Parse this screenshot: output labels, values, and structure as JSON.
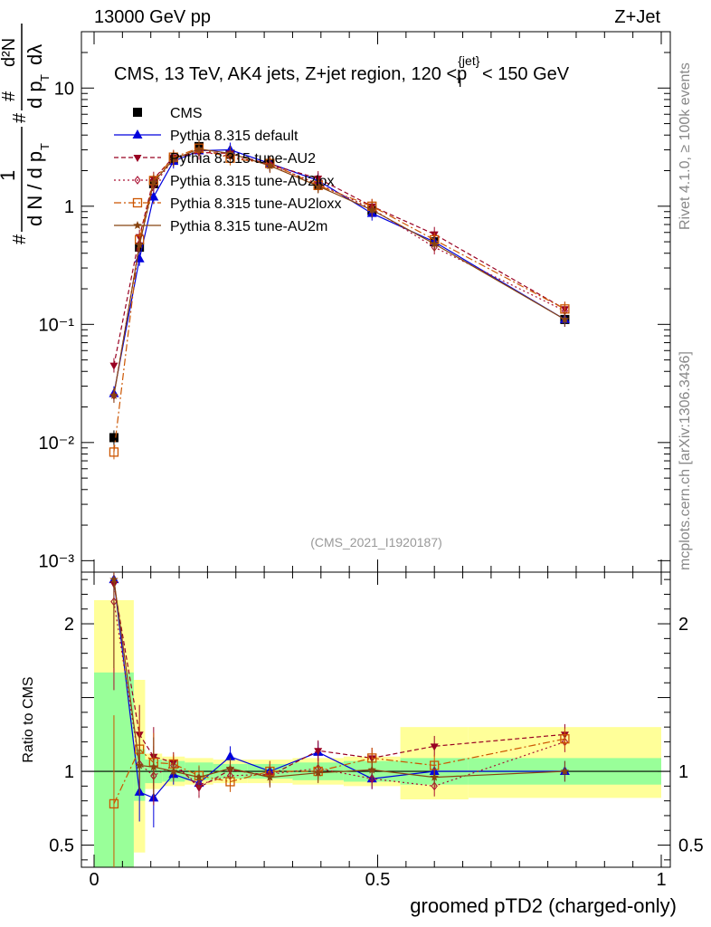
{
  "header": {
    "left": "13000 GeV pp",
    "right": "Z+Jet"
  },
  "side_labels": {
    "rivet": "Rivet 4.1.0, ≥ 100k events",
    "mcplots": "mcplots.cern.ch [arXiv:1306.3436]"
  },
  "watermark": "(CMS_2021_I1920187)",
  "colors": {
    "CMS": "#000000",
    "default": "#0000dd",
    "AU2": "#990022",
    "AU2lox": "#aa1133",
    "AU2loxx": "#cc5500",
    "AU2m": "#884411",
    "band_inner": "#99ff99",
    "band_outer": "#ffff99"
  },
  "chart_data": [
    {
      "type": "line",
      "panel": "main",
      "yscale": "log",
      "title": "CMS, 13 TeV, AK4 jets, Z+jet region, 120 <p_T^{jet}< 150 GeV",
      "ylabel": "1/dN/dp_T d²N/dp_T dλ",
      "xlim": [
        0,
        1
      ],
      "ylim": [
        0.0008,
        30
      ],
      "yticks": [
        {
          "value": 0.001,
          "label": "10⁻³"
        },
        {
          "value": 0.01,
          "label": "10⁻²"
        },
        {
          "value": 0.1,
          "label": "10⁻¹"
        },
        {
          "value": 1,
          "label": "1"
        },
        {
          "value": 10,
          "label": "10"
        }
      ],
      "x": [
        0.035,
        0.08,
        0.105,
        0.14,
        0.185,
        0.24,
        0.31,
        0.395,
        0.49,
        0.6,
        0.83
      ],
      "bin_edges": [
        0,
        0.07,
        0.09,
        0.12,
        0.16,
        0.21,
        0.27,
        0.35,
        0.44,
        0.54,
        0.66,
        1.0
      ],
      "legend": [
        "CMS",
        "Pythia 8.315 default",
        "Pythia 8.315 tune-AU2",
        "Pythia 8.315 tune-AU2lox",
        "Pythia 8.315 tune-AU2loxx",
        "Pythia 8.315 tune-AU2m"
      ],
      "series": [
        {
          "name": "CMS",
          "key": "CMS",
          "values": [
            0.011,
            0.45,
            1.55,
            2.5,
            3.2,
            2.75,
            2.3,
            1.5,
            0.92,
            0.5,
            0.11
          ]
        },
        {
          "name": "Pythia 8.315 default",
          "key": "default",
          "values": [
            0.026,
            0.36,
            1.2,
            2.4,
            2.95,
            3.0,
            2.3,
            1.65,
            0.87,
            0.5,
            0.11
          ]
        },
        {
          "name": "Pythia 8.315 tune-AU2",
          "key": "AU2",
          "values": [
            0.045,
            0.55,
            1.7,
            2.6,
            2.85,
            2.8,
            2.25,
            1.72,
            1.0,
            0.58,
            0.135
          ]
        },
        {
          "name": "Pythia 8.315 tune-AU2lox",
          "key": "AU2lox",
          "values": [
            0.025,
            0.48,
            1.5,
            2.5,
            2.9,
            2.65,
            2.25,
            1.55,
            0.95,
            0.45,
            0.13
          ]
        },
        {
          "name": "Pythia 8.315 tune-AU2loxx",
          "key": "AU2loxx",
          "values": [
            0.0083,
            0.52,
            1.65,
            2.6,
            3.1,
            2.55,
            2.3,
            1.5,
            1.0,
            0.52,
            0.135
          ]
        },
        {
          "name": "Pythia 8.315 tune-AU2m",
          "key": "AU2m",
          "values": [
            0.025,
            0.47,
            1.6,
            2.5,
            3.05,
            2.8,
            2.2,
            1.48,
            0.93,
            0.48,
            0.11
          ]
        }
      ]
    },
    {
      "type": "line",
      "panel": "ratio",
      "ylabel": "Ratio to CMS",
      "xlabel": "groomed pTD2 (charged-only)",
      "xlim": [
        0,
        1
      ],
      "ylim": [
        0.35,
        2.35
      ],
      "xticks": [
        {
          "value": 0,
          "label": "0"
        },
        {
          "value": 0.5,
          "label": "0.5"
        },
        {
          "value": 1,
          "label": "1"
        }
      ],
      "yticks": [
        {
          "value": 0.5,
          "label": "0.5"
        },
        {
          "value": 1,
          "label": "1"
        },
        {
          "value": 2,
          "label": "2"
        }
      ],
      "x": [
        0.035,
        0.08,
        0.105,
        0.14,
        0.185,
        0.24,
        0.31,
        0.395,
        0.49,
        0.6,
        0.83
      ],
      "bin_edges": [
        0,
        0.07,
        0.09,
        0.12,
        0.16,
        0.21,
        0.27,
        0.35,
        0.44,
        0.54,
        0.66,
        1.0
      ],
      "band_inner": [
        [
          0.35,
          1.67
        ],
        [
          0.8,
          1.15
        ],
        [
          0.92,
          1.08
        ],
        [
          0.93,
          1.07
        ],
        [
          0.94,
          1.06
        ],
        [
          0.95,
          1.05
        ],
        [
          0.95,
          1.05
        ],
        [
          0.94,
          1.06
        ],
        [
          0.93,
          1.07
        ],
        [
          0.91,
          1.09
        ],
        [
          0.91,
          1.09
        ]
      ],
      "band_outer": [
        [
          0.35,
          2.16
        ],
        [
          0.45,
          1.62
        ],
        [
          0.88,
          1.12
        ],
        [
          0.9,
          1.1
        ],
        [
          0.91,
          1.09
        ],
        [
          0.92,
          1.08
        ],
        [
          0.92,
          1.08
        ],
        [
          0.91,
          1.09
        ],
        [
          0.9,
          1.1
        ],
        [
          0.81,
          1.3
        ],
        [
          0.82,
          1.3
        ]
      ],
      "series": [
        {
          "name": "Pythia 8.315 default",
          "key": "default",
          "values": [
            2.3,
            0.86,
            0.82,
            0.98,
            0.92,
            1.1,
            1.0,
            1.13,
            0.95,
            1.0,
            1.0
          ]
        },
        {
          "name": "Pythia 8.315 tune-AU2",
          "key": "AU2",
          "values": [
            2.27,
            1.25,
            1.1,
            1.06,
            0.89,
            1.01,
            0.97,
            1.14,
            1.09,
            1.17,
            1.25
          ]
        },
        {
          "name": "Pythia 8.315 tune-AU2lox",
          "key": "AU2lox",
          "values": [
            2.15,
            1.05,
            0.97,
            1.04,
            0.91,
            0.97,
            0.98,
            1.02,
            0.95,
            0.9,
            1.2
          ]
        },
        {
          "name": "Pythia 8.315 tune-AU2loxx",
          "key": "AU2loxx",
          "values": [
            0.78,
            1.15,
            1.06,
            1.05,
            0.97,
            0.93,
            1.0,
            1.0,
            1.09,
            1.04,
            1.22
          ]
        },
        {
          "name": "Pythia 8.315 tune-AU2m",
          "key": "AU2m",
          "values": [
            2.3,
            1.04,
            1.03,
            1.0,
            0.96,
            1.02,
            0.96,
            0.99,
            1.01,
            0.96,
            1.0
          ]
        }
      ]
    }
  ]
}
